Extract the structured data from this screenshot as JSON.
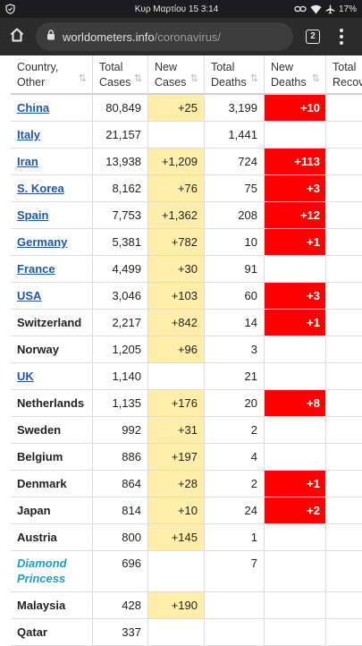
{
  "status_bar": {
    "datetime": "Κυρ Μαρτίου 15 3:14",
    "battery": "17%",
    "icons": [
      "shield-icon",
      "link-icon",
      "wifi-icon",
      "airplane-icon"
    ]
  },
  "browser": {
    "url_domain": "worldometers.info",
    "url_path": "/coronavirus/",
    "tab_count": "2",
    "icons": [
      "home-icon",
      "lock-icon",
      "tabs-icon",
      "more-vert-icon"
    ]
  },
  "table": {
    "headers": {
      "country": [
        "Country,",
        "Other"
      ],
      "total_cases": [
        "Total",
        "Cases"
      ],
      "new_cases": [
        "New",
        "Cases"
      ],
      "total_deaths": [
        "Total",
        "Deaths"
      ],
      "new_deaths": [
        "New",
        "Deaths"
      ],
      "total_recovered": [
        "Total",
        "Recove"
      ]
    },
    "sort_icon": "⇅",
    "colors": {
      "link": "#2158a5",
      "ship": "#1b9fc4",
      "new_cases_bg": "#ffeeaa",
      "new_deaths_bg": "#ff0000"
    },
    "rows": [
      {
        "country": "China",
        "link": true,
        "total_cases": "80,849",
        "new_cases": "+25",
        "total_deaths": "3,199",
        "new_deaths": "+10"
      },
      {
        "country": "Italy",
        "link": true,
        "total_cases": "21,157",
        "new_cases": "",
        "total_deaths": "1,441",
        "new_deaths": ""
      },
      {
        "country": "Iran",
        "link": true,
        "total_cases": "13,938",
        "new_cases": "+1,209",
        "total_deaths": "724",
        "new_deaths": "+113"
      },
      {
        "country": "S. Korea",
        "link": true,
        "total_cases": "8,162",
        "new_cases": "+76",
        "total_deaths": "75",
        "new_deaths": "+3"
      },
      {
        "country": "Spain",
        "link": true,
        "total_cases": "7,753",
        "new_cases": "+1,362",
        "total_deaths": "208",
        "new_deaths": "+12"
      },
      {
        "country": "Germany",
        "link": true,
        "total_cases": "5,381",
        "new_cases": "+782",
        "total_deaths": "10",
        "new_deaths": "+1"
      },
      {
        "country": "France",
        "link": true,
        "total_cases": "4,499",
        "new_cases": "+30",
        "total_deaths": "91",
        "new_deaths": ""
      },
      {
        "country": "USA",
        "link": true,
        "total_cases": "3,046",
        "new_cases": "+103",
        "total_deaths": "60",
        "new_deaths": "+3"
      },
      {
        "country": "Switzerland",
        "link": false,
        "total_cases": "2,217",
        "new_cases": "+842",
        "total_deaths": "14",
        "new_deaths": "+1"
      },
      {
        "country": "Norway",
        "link": false,
        "total_cases": "1,205",
        "new_cases": "+96",
        "total_deaths": "3",
        "new_deaths": ""
      },
      {
        "country": "UK",
        "link": true,
        "total_cases": "1,140",
        "new_cases": "",
        "total_deaths": "21",
        "new_deaths": ""
      },
      {
        "country": "Netherlands",
        "link": false,
        "total_cases": "1,135",
        "new_cases": "+176",
        "total_deaths": "20",
        "new_deaths": "+8"
      },
      {
        "country": "Sweden",
        "link": false,
        "total_cases": "992",
        "new_cases": "+31",
        "total_deaths": "2",
        "new_deaths": ""
      },
      {
        "country": "Belgium",
        "link": false,
        "total_cases": "886",
        "new_cases": "+197",
        "total_deaths": "4",
        "new_deaths": ""
      },
      {
        "country": "Denmark",
        "link": false,
        "total_cases": "864",
        "new_cases": "+28",
        "total_deaths": "2",
        "new_deaths": "+1"
      },
      {
        "country": "Japan",
        "link": false,
        "total_cases": "814",
        "new_cases": "+10",
        "total_deaths": "24",
        "new_deaths": "+2"
      },
      {
        "country": "Austria",
        "link": false,
        "total_cases": "800",
        "new_cases": "+145",
        "total_deaths": "1",
        "new_deaths": ""
      },
      {
        "country": "Diamond Princess",
        "ship": true,
        "link": false,
        "total_cases": "696",
        "new_cases": "",
        "total_deaths": "7",
        "new_deaths": ""
      },
      {
        "country": "Malaysia",
        "link": false,
        "total_cases": "428",
        "new_cases": "+190",
        "total_deaths": "",
        "new_deaths": ""
      },
      {
        "country": "Qatar",
        "link": false,
        "total_cases": "337",
        "new_cases": "",
        "total_deaths": "",
        "new_deaths": ""
      }
    ]
  }
}
